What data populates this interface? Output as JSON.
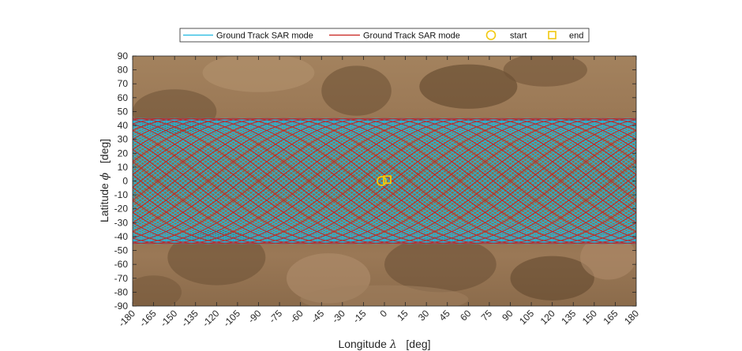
{
  "chart_data": {
    "type": "line",
    "title": "",
    "xlabel_parts": {
      "text": "Longitude ",
      "symbol": "λ",
      "unit": "   [deg]"
    },
    "ylabel_parts": {
      "text": "Latitude ",
      "symbol": "ϕ",
      "unit": "   [deg]"
    },
    "xlim": [
      -180,
      180
    ],
    "ylim": [
      -90,
      90
    ],
    "xticks": [
      -180,
      -165,
      -150,
      -135,
      -120,
      -105,
      -90,
      -75,
      -60,
      -45,
      -30,
      -15,
      0,
      15,
      30,
      45,
      60,
      75,
      90,
      105,
      120,
      135,
      150,
      165,
      180
    ],
    "yticks": [
      90,
      80,
      70,
      60,
      50,
      40,
      30,
      20,
      10,
      0,
      -10,
      -20,
      -30,
      -40,
      -50,
      -60,
      -70,
      -80,
      -90
    ],
    "grid": false,
    "legend_position": "top",
    "background_image": "Venus surface map (brown)",
    "series": [
      {
        "name": "Ground Track SAR mode",
        "color": "#1FB8E0",
        "max_latitude": 45,
        "phase_offset_deg": 0,
        "passes": 100
      },
      {
        "name": "Ground Track SAR mode",
        "color": "#C8201C",
        "max_latitude": 45,
        "phase_offset_deg": 90,
        "passes": 15
      }
    ],
    "markers": [
      {
        "name": "start",
        "shape": "circle",
        "color": "#F2C80F",
        "x": -2,
        "y": 0
      },
      {
        "name": "end",
        "shape": "square",
        "color": "#F2C80F",
        "x": 2,
        "y": 1
      }
    ]
  }
}
